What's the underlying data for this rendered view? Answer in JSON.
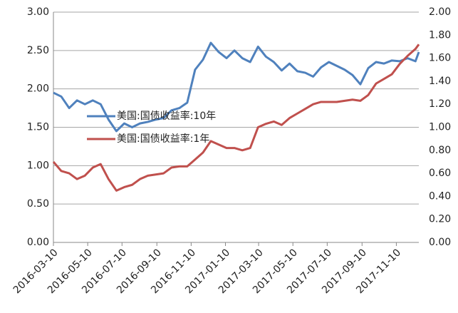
{
  "chart_data": {
    "type": "line",
    "x": [
      "2016-03-10",
      "2016-03-24",
      "2016-04-07",
      "2016-04-21",
      "2016-05-05",
      "2016-05-19",
      "2016-06-02",
      "2016-06-16",
      "2016-06-30",
      "2016-07-14",
      "2016-07-28",
      "2016-08-11",
      "2016-08-25",
      "2016-09-08",
      "2016-09-22",
      "2016-10-06",
      "2016-10-20",
      "2016-11-03",
      "2016-11-17",
      "2016-12-01",
      "2016-12-15",
      "2016-12-29",
      "2017-01-12",
      "2017-01-26",
      "2017-02-09",
      "2017-02-23",
      "2017-03-09",
      "2017-03-23",
      "2017-04-06",
      "2017-04-20",
      "2017-05-04",
      "2017-05-18",
      "2017-06-01",
      "2017-06-15",
      "2017-06-29",
      "2017-07-13",
      "2017-07-27",
      "2017-08-10",
      "2017-08-24",
      "2017-09-07",
      "2017-09-21",
      "2017-10-05",
      "2017-10-19",
      "2017-11-02",
      "2017-11-16",
      "2017-11-30",
      "2017-12-14",
      "2017-12-20"
    ],
    "series": [
      {
        "name": "美国:国债收益率:10年",
        "color": "#4f81bd",
        "axis": "y",
        "values": [
          1.95,
          1.9,
          1.75,
          1.85,
          1.8,
          1.85,
          1.8,
          1.6,
          1.45,
          1.55,
          1.5,
          1.55,
          1.57,
          1.6,
          1.62,
          1.72,
          1.75,
          1.82,
          2.25,
          2.38,
          2.6,
          2.48,
          2.4,
          2.5,
          2.4,
          2.35,
          2.55,
          2.42,
          2.35,
          2.24,
          2.33,
          2.23,
          2.21,
          2.16,
          2.28,
          2.35,
          2.3,
          2.25,
          2.18,
          2.06,
          2.27,
          2.35,
          2.33,
          2.37,
          2.36,
          2.4,
          2.36,
          2.48
        ]
      },
      {
        "name": "美国:国债收益率:1年",
        "color": "#c0504d",
        "axis": "y2",
        "values": [
          0.7,
          0.62,
          0.6,
          0.55,
          0.58,
          0.65,
          0.68,
          0.55,
          0.45,
          0.48,
          0.5,
          0.55,
          0.58,
          0.59,
          0.6,
          0.65,
          0.66,
          0.66,
          0.72,
          0.78,
          0.88,
          0.85,
          0.82,
          0.82,
          0.8,
          0.82,
          1.0,
          1.03,
          1.05,
          1.02,
          1.08,
          1.12,
          1.16,
          1.2,
          1.22,
          1.22,
          1.22,
          1.23,
          1.24,
          1.23,
          1.28,
          1.38,
          1.42,
          1.46,
          1.55,
          1.62,
          1.68,
          1.72
        ]
      }
    ],
    "xlim": [
      "2016-03-10",
      "2017-12-20"
    ],
    "xticks": [
      "2016-03-10",
      "2016-05-10",
      "2016-07-10",
      "2016-09-10",
      "2016-11-10",
      "2017-01-10",
      "2017-03-10",
      "2017-05-10",
      "2017-07-10",
      "2017-09-10",
      "2017-11-10"
    ],
    "ylim": [
      0,
      3
    ],
    "yticks": [
      {
        "value": 0,
        "label": "0.00"
      },
      {
        "value": 0.5,
        "label": "0.50"
      },
      {
        "value": 1,
        "label": "1.00"
      },
      {
        "value": 1.5,
        "label": "1.50"
      },
      {
        "value": 2,
        "label": "2.00"
      },
      {
        "value": 2.5,
        "label": "2.50"
      },
      {
        "value": 3,
        "label": "3.00"
      }
    ],
    "y2lim": [
      0,
      2
    ],
    "y2ticks": [
      {
        "value": 0,
        "label": "0.00"
      },
      {
        "value": 0.2,
        "label": "0.20"
      },
      {
        "value": 0.4,
        "label": "0.40"
      },
      {
        "value": 0.6,
        "label": "0.60"
      },
      {
        "value": 0.8,
        "label": "0.80"
      },
      {
        "value": 1,
        "label": "1.00"
      },
      {
        "value": 1.2,
        "label": "1.20"
      },
      {
        "value": 1.4,
        "label": "1.40"
      },
      {
        "value": 1.6,
        "label": "1.60"
      },
      {
        "value": 1.8,
        "label": "1.80"
      },
      {
        "value": 2,
        "label": "2.00"
      }
    ],
    "grid": true,
    "legend": "left"
  }
}
